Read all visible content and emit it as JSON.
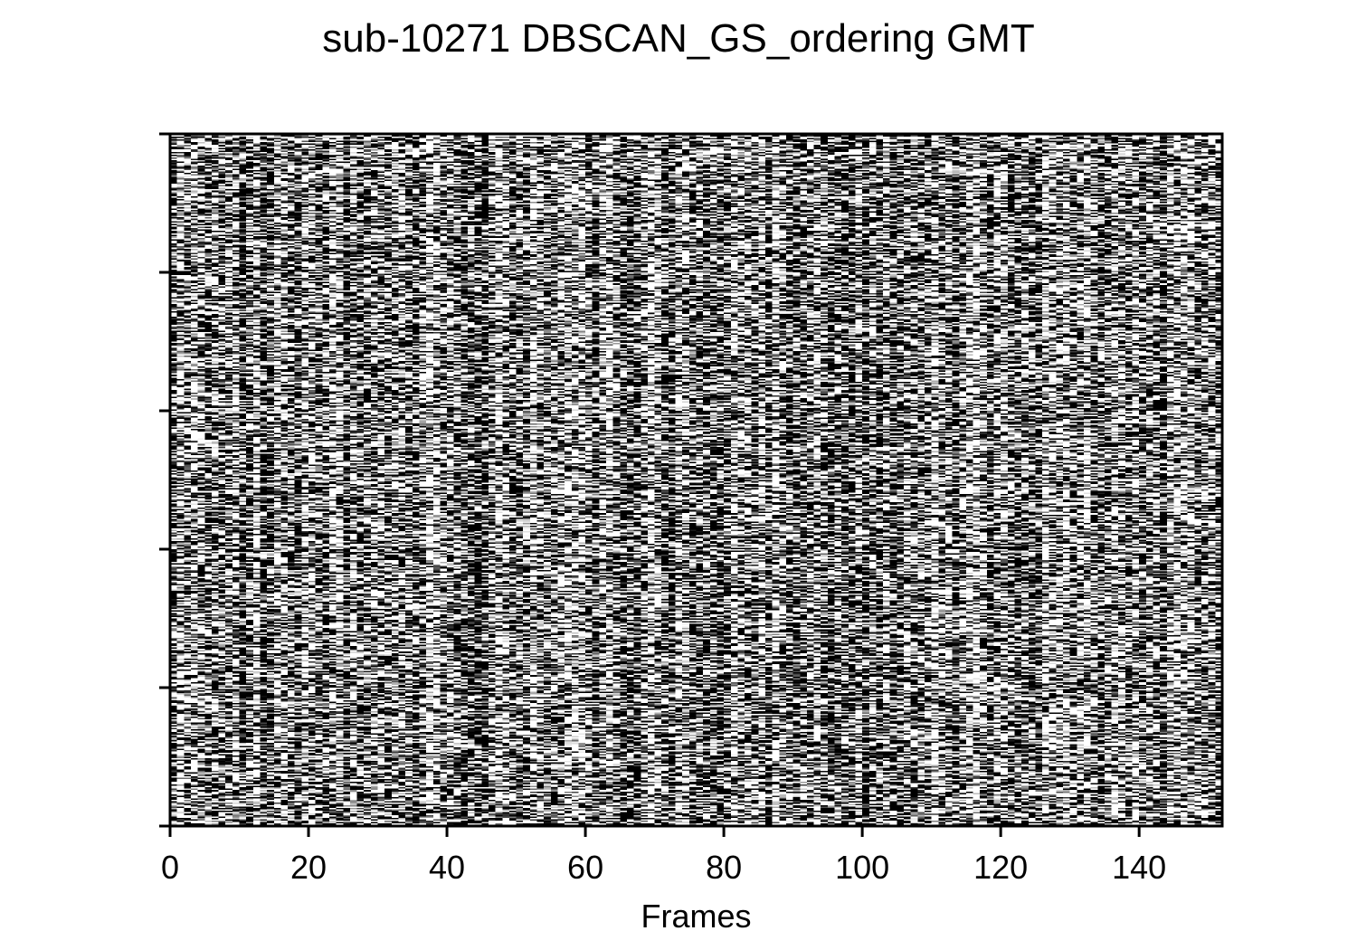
{
  "chart_data": {
    "type": "heatmap",
    "title": "sub-10271 DBSCAN_GS_ordering GMT",
    "xlabel": "Frames",
    "ylabel": "",
    "xlim": [
      0,
      152
    ],
    "x_ticks": [
      0,
      20,
      40,
      60,
      80,
      100,
      120,
      140
    ],
    "x_tick_labels": [
      "0",
      "20",
      "40",
      "60",
      "80",
      "100",
      "120",
      "140"
    ],
    "y_tick_count": 6,
    "y_tick_labels": [],
    "colormap": "grayscale",
    "color_low": "#000000",
    "color_high": "#ffffff",
    "frames": 152,
    "rows": 500,
    "values": "dense random-looking grayscale intensities; individual cell values not legible"
  }
}
